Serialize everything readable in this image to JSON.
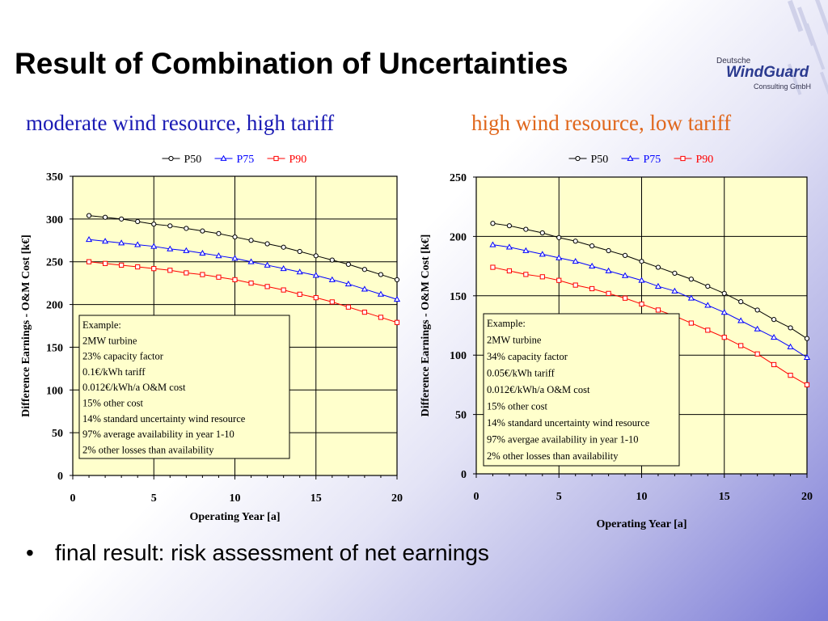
{
  "slide": {
    "title": "Result of Combination of Uncertainties",
    "logo": {
      "top": "Deutsche",
      "main": "WindGuard",
      "bottom": "Consulting GmbH"
    },
    "bullet": "final result: risk assessment of net earnings"
  },
  "chart_data": [
    {
      "type": "line",
      "title": "moderate wind resource, high tariff",
      "xlabel": "Operating Year [a]",
      "ylabel": "Difference Earnings - O&M Cost [k€]",
      "xlim": [
        0,
        20
      ],
      "ylim": [
        0,
        350
      ],
      "xticks": [
        0,
        5,
        10,
        15,
        20
      ],
      "yticks": [
        0,
        50,
        100,
        150,
        200,
        250,
        300,
        350
      ],
      "grid": true,
      "legend": "top-center",
      "x": [
        1,
        2,
        3,
        4,
        5,
        6,
        7,
        8,
        9,
        10,
        11,
        12,
        13,
        14,
        15,
        16,
        17,
        18,
        19,
        20
      ],
      "series": [
        {
          "name": "P50",
          "marker": "circle",
          "color": "#000000",
          "values": [
            304,
            302,
            300,
            297,
            294,
            292,
            289,
            286,
            283,
            279,
            275,
            271,
            267,
            262,
            257,
            252,
            247,
            241,
            235,
            229
          ]
        },
        {
          "name": "P75",
          "marker": "triangle",
          "color": "#0000ff",
          "values": [
            276,
            274,
            272,
            270,
            268,
            265,
            263,
            260,
            257,
            254,
            250,
            246,
            242,
            238,
            234,
            229,
            224,
            218,
            212,
            206
          ]
        },
        {
          "name": "P90",
          "marker": "square",
          "color": "#ff0000",
          "values": [
            250,
            248,
            246,
            244,
            242,
            240,
            237,
            235,
            232,
            229,
            225,
            221,
            217,
            212,
            208,
            203,
            197,
            191,
            185,
            179
          ]
        }
      ],
      "annotation": [
        "Example:",
        "2MW turbine",
        "23% capacity factor",
        "0.1€/kWh tariff",
        "0.012€/kWh/a O&M cost",
        "15% other cost",
        "14% standard uncertainty wind resource",
        "97% average availability in year 1-10",
        "2% other losses than availability"
      ]
    },
    {
      "type": "line",
      "title": "high wind resource, low tariff",
      "xlabel": "Operating Year [a]",
      "ylabel": "Difference Earnings - O&M Cost [k€]",
      "xlim": [
        0,
        20
      ],
      "ylim": [
        0,
        250
      ],
      "xticks": [
        0,
        5,
        10,
        15,
        20
      ],
      "yticks": [
        0,
        50,
        100,
        150,
        200,
        250
      ],
      "grid": true,
      "legend": "top-center",
      "x": [
        1,
        2,
        3,
        4,
        5,
        6,
        7,
        8,
        9,
        10,
        11,
        12,
        13,
        14,
        15,
        16,
        17,
        18,
        19,
        20
      ],
      "series": [
        {
          "name": "P50",
          "marker": "circle",
          "color": "#000000",
          "values": [
            211,
            209,
            206,
            203,
            199,
            196,
            192,
            188,
            184,
            179,
            174,
            169,
            164,
            158,
            152,
            145,
            138,
            130,
            123,
            114
          ]
        },
        {
          "name": "P75",
          "marker": "triangle",
          "color": "#0000ff",
          "values": [
            193,
            191,
            188,
            185,
            182,
            179,
            175,
            171,
            167,
            163,
            158,
            154,
            148,
            142,
            136,
            129,
            122,
            115,
            107,
            98
          ]
        },
        {
          "name": "P90",
          "marker": "square",
          "color": "#ff0000",
          "values": [
            174,
            171,
            168,
            166,
            163,
            159,
            156,
            152,
            148,
            143,
            138,
            133,
            127,
            121,
            115,
            108,
            101,
            92,
            83,
            75
          ]
        }
      ],
      "annotation": [
        "Example:",
        "2MW turbine",
        "34% capacity factor",
        "0.05€/kWh tariff",
        "0.012€/kWh/a O&M cost",
        "15% other cost",
        "14% standard uncertainty wind resource",
        "97% avergae availability in year 1-10",
        "2% other losses than availability"
      ]
    }
  ]
}
